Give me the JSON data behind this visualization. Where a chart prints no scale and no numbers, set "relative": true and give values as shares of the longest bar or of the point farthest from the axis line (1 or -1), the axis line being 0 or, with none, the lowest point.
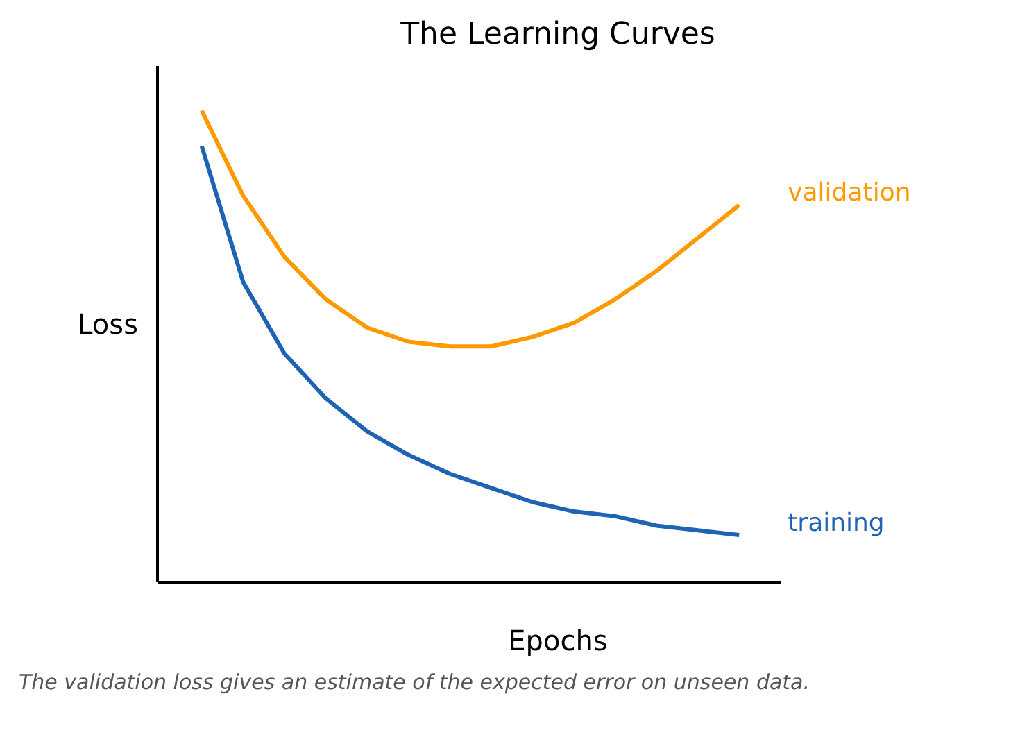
{
  "chart_data": {
    "type": "line",
    "title": "The Learning Curves",
    "xlabel": "Epochs",
    "ylabel": "Loss",
    "relative": true,
    "categories": [
      null,
      null,
      null,
      null,
      null,
      null,
      null,
      null,
      null,
      null,
      null,
      null,
      null,
      null
    ],
    "series": [
      {
        "name": "validation",
        "color": "#ff9900",
        "values": [
          1.0,
          0.82,
          0.69,
          0.6,
          0.54,
          0.51,
          0.5,
          0.5,
          0.52,
          0.55,
          0.6,
          0.66,
          0.73,
          0.8
        ]
      },
      {
        "name": "training",
        "color": "#1f63b4",
        "values": [
          0.925,
          0.637,
          0.485,
          0.39,
          0.32,
          0.27,
          0.23,
          0.2,
          0.17,
          0.15,
          0.14,
          0.12,
          0.11,
          0.1
        ]
      }
    ],
    "annotations": [
      "The validation loss gives an estimate of the expected error on unseen data."
    ]
  }
}
